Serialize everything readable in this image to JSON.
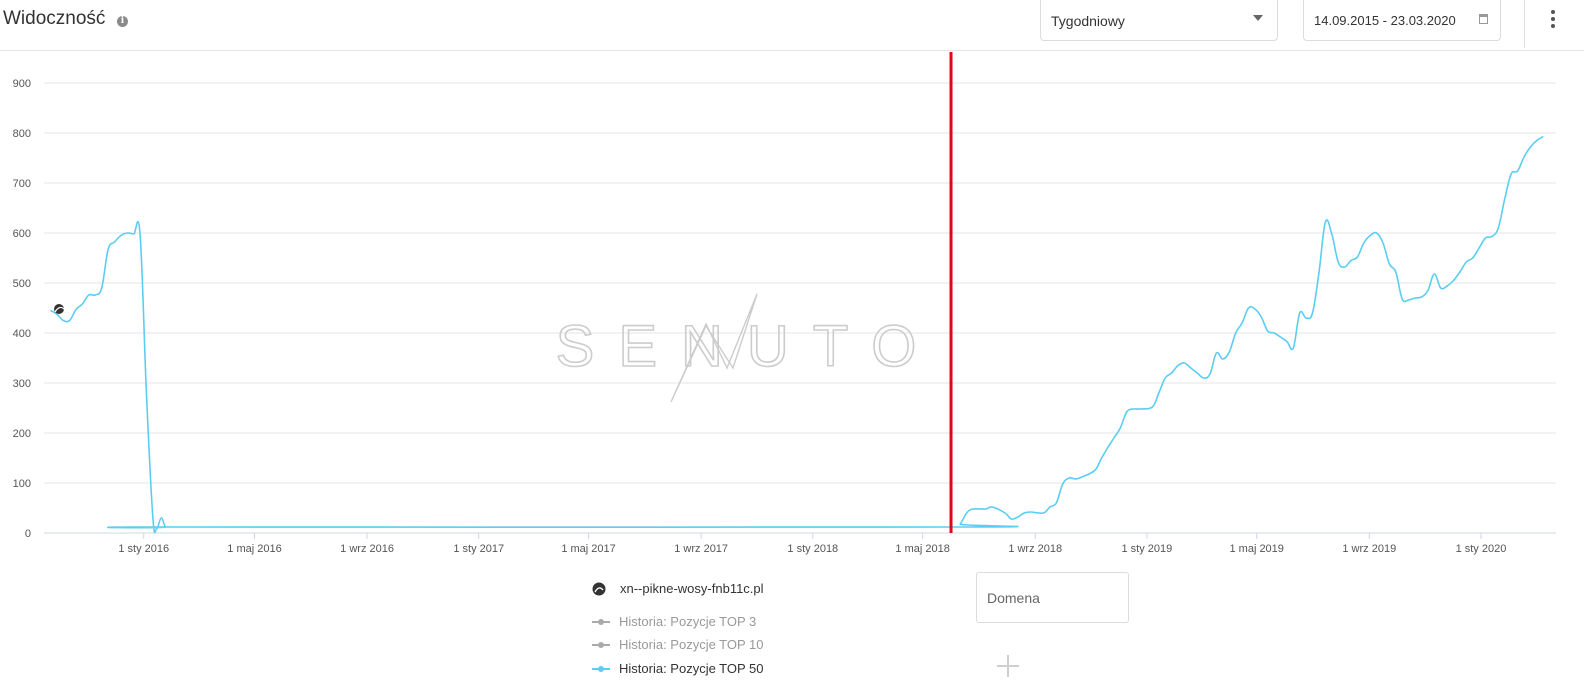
{
  "header": {
    "title": "Widoczność",
    "info_icon": "info-icon",
    "interval_select": "Tygodniowy",
    "date_range": "14.09.2015 - 23.03.2020",
    "menu_icon": "more-vertical-icon"
  },
  "watermark": "SENUTO",
  "legend": {
    "domain": "xn--pikne-wosy-fnb11c.pl",
    "items": [
      {
        "label": "Historia: Pozycje TOP 3",
        "color": "#aaaaaa",
        "active": false
      },
      {
        "label": "Historia: Pozycje TOP 10",
        "color": "#aaaaaa",
        "active": false
      },
      {
        "label": "Historia: Pozycje TOP 50",
        "color": "#5bcdf3",
        "active": true
      }
    ]
  },
  "domain_input": {
    "placeholder": "Domena"
  },
  "add_icon": "plus-icon",
  "chart_data": {
    "type": "line",
    "title": "",
    "xlabel": "",
    "ylabel": "",
    "ylim": [
      0,
      900
    ],
    "yticks": [
      0,
      100,
      200,
      300,
      400,
      500,
      600,
      700,
      800,
      900
    ],
    "xtick_labels": [
      {
        "date": "2016-01-01",
        "label": "1 sty 2016"
      },
      {
        "date": "2016-05-01",
        "label": "1 maj 2016"
      },
      {
        "date": "2016-09-01",
        "label": "1 wrz 2016"
      },
      {
        "date": "2017-01-01",
        "label": "1 sty 2017"
      },
      {
        "date": "2017-05-01",
        "label": "1 maj 2017"
      },
      {
        "date": "2017-09-01",
        "label": "1 wrz 2017"
      },
      {
        "date": "2018-01-01",
        "label": "1 sty 2018"
      },
      {
        "date": "2018-05-01",
        "label": "1 maj 2018"
      },
      {
        "date": "2018-09-01",
        "label": "1 wrz 2018"
      },
      {
        "date": "2019-01-01",
        "label": "1 sty 2019"
      },
      {
        "date": "2019-05-01",
        "label": "1 maj 2019"
      },
      {
        "date": "2019-09-01",
        "label": "1 wrz 2019"
      },
      {
        "date": "2020-01-01",
        "label": "1 sty 2020"
      }
    ],
    "xlim": [
      "2015-09-14",
      "2020-03-23"
    ],
    "grid": true,
    "marker_line": {
      "date": "2018-06-01",
      "color": "#e30613"
    },
    "series": [
      {
        "name": "Historia: Pozycje TOP 50",
        "color": "#5bcdf3",
        "points": [
          [
            "2015-09-21",
            445
          ],
          [
            "2015-09-28",
            438
          ],
          [
            "2015-10-05",
            425
          ],
          [
            "2015-10-12",
            425
          ],
          [
            "2015-10-19",
            447
          ],
          [
            "2015-10-26",
            458
          ],
          [
            "2015-11-02",
            476
          ],
          [
            "2015-11-09",
            476
          ],
          [
            "2015-11-16",
            490
          ],
          [
            "2015-11-23",
            567
          ],
          [
            "2015-11-30",
            582
          ],
          [
            "2015-12-07",
            595
          ],
          [
            "2015-12-14",
            600
          ],
          [
            "2015-12-21",
            598
          ],
          [
            "2015-12-28",
            597
          ],
          [
            "2016-01-04",
            276
          ],
          [
            "2016-01-11",
            30
          ],
          [
            "2016-01-15",
            8
          ],
          [
            "2016-01-20",
            30
          ],
          [
            "2016-01-25",
            12
          ],
          [
            "2016-02-01",
            12
          ],
          [
            "2018-06-04",
            12
          ],
          [
            "2018-06-11",
            18
          ],
          [
            "2018-06-18",
            40
          ],
          [
            "2018-06-25",
            48
          ],
          [
            "2018-07-09",
            48
          ],
          [
            "2018-07-16",
            52
          ],
          [
            "2018-07-30",
            40
          ],
          [
            "2018-08-06",
            28
          ],
          [
            "2018-08-13",
            32
          ],
          [
            "2018-08-20",
            40
          ],
          [
            "2018-08-27",
            42
          ],
          [
            "2018-09-10",
            40
          ],
          [
            "2018-09-17",
            52
          ],
          [
            "2018-09-24",
            60
          ],
          [
            "2018-10-01",
            98
          ],
          [
            "2018-10-08",
            110
          ],
          [
            "2018-10-15",
            108
          ],
          [
            "2018-10-22",
            112
          ],
          [
            "2018-11-05",
            125
          ],
          [
            "2018-11-12",
            148
          ],
          [
            "2018-11-19",
            170
          ],
          [
            "2018-11-26",
            190
          ],
          [
            "2018-12-03",
            210
          ],
          [
            "2018-12-10",
            242
          ],
          [
            "2018-12-17",
            248
          ],
          [
            "2018-12-24",
            248
          ],
          [
            "2019-01-07",
            252
          ],
          [
            "2019-01-14",
            280
          ],
          [
            "2019-01-21",
            310
          ],
          [
            "2019-01-28",
            320
          ],
          [
            "2019-02-04",
            335
          ],
          [
            "2019-02-11",
            340
          ],
          [
            "2019-02-18",
            330
          ],
          [
            "2019-02-25",
            320
          ],
          [
            "2019-03-04",
            310
          ],
          [
            "2019-03-11",
            318
          ],
          [
            "2019-03-18",
            360
          ],
          [
            "2019-03-25",
            348
          ],
          [
            "2019-04-01",
            362
          ],
          [
            "2019-04-08",
            400
          ],
          [
            "2019-04-15",
            420
          ],
          [
            "2019-04-22",
            450
          ],
          [
            "2019-04-29",
            448
          ],
          [
            "2019-05-06",
            432
          ],
          [
            "2019-05-13",
            404
          ],
          [
            "2019-05-20",
            400
          ],
          [
            "2019-05-27",
            392
          ],
          [
            "2019-06-03",
            383
          ],
          [
            "2019-06-10",
            370
          ],
          [
            "2019-06-17",
            440
          ],
          [
            "2019-06-24",
            430
          ],
          [
            "2019-07-01",
            440
          ],
          [
            "2019-07-08",
            520
          ],
          [
            "2019-07-15",
            622
          ],
          [
            "2019-07-22",
            598
          ],
          [
            "2019-07-29",
            542
          ],
          [
            "2019-08-05",
            532
          ],
          [
            "2019-08-12",
            545
          ],
          [
            "2019-08-19",
            552
          ],
          [
            "2019-08-26",
            580
          ],
          [
            "2019-09-02",
            595
          ],
          [
            "2019-09-09",
            600
          ],
          [
            "2019-09-16",
            580
          ],
          [
            "2019-09-23",
            538
          ],
          [
            "2019-09-30",
            522
          ],
          [
            "2019-10-07",
            468
          ],
          [
            "2019-10-14",
            466
          ],
          [
            "2019-10-21",
            470
          ],
          [
            "2019-10-28",
            472
          ],
          [
            "2019-11-04",
            485
          ],
          [
            "2019-11-11",
            518
          ],
          [
            "2019-11-18",
            490
          ],
          [
            "2019-11-25",
            494
          ],
          [
            "2019-12-02",
            505
          ],
          [
            "2019-12-09",
            522
          ],
          [
            "2019-12-16",
            542
          ],
          [
            "2019-12-23",
            550
          ],
          [
            "2019-12-30",
            570
          ],
          [
            "2020-01-06",
            590
          ],
          [
            "2020-01-13",
            593
          ],
          [
            "2020-01-20",
            610
          ],
          [
            "2020-01-27",
            668
          ],
          [
            "2020-02-03",
            718
          ],
          [
            "2020-02-10",
            724
          ],
          [
            "2020-02-17",
            752
          ],
          [
            "2020-02-24",
            772
          ],
          [
            "2020-03-02",
            785
          ],
          [
            "2020-03-09",
            793
          ]
        ]
      }
    ]
  }
}
